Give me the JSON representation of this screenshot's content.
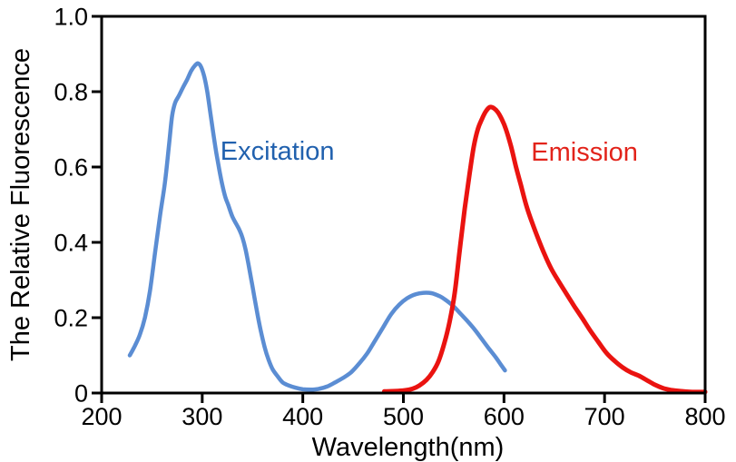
{
  "figure": {
    "background": "#ffffff",
    "axis_color": "#000000",
    "text_color": "#000000"
  },
  "chart_data": {
    "type": "line",
    "title": "",
    "xlabel": "Wavelength(nm)",
    "ylabel": "The Relative Fluorescence",
    "xlim": [
      200,
      800
    ],
    "ylim": [
      0,
      1.0
    ],
    "x_ticks": [
      200,
      300,
      400,
      500,
      600,
      700,
      800
    ],
    "x_tick_labels": [
      "200",
      "300",
      "400",
      "500",
      "600",
      "700",
      "800"
    ],
    "y_ticks": [
      0,
      0.2,
      0.4,
      0.6,
      0.8,
      1.0
    ],
    "y_tick_labels": [
      "0",
      "0.2",
      "0.4",
      "0.6",
      "0.8",
      "1.0"
    ],
    "grid": false,
    "frame": true,
    "legend_position": "inline-annotations",
    "series": [
      {
        "name": "Excitation",
        "label": "Excitation",
        "color": "#5b8dd3",
        "label_color": "#2161ae",
        "stroke_width": 4.5,
        "label_x": 318,
        "label_y": 0.619,
        "points": [
          [
            228,
            0.1
          ],
          [
            233,
            0.125
          ],
          [
            238,
            0.155
          ],
          [
            243,
            0.2
          ],
          [
            248,
            0.27
          ],
          [
            253,
            0.37
          ],
          [
            258,
            0.47
          ],
          [
            263,
            0.56
          ],
          [
            267,
            0.66
          ],
          [
            270,
            0.735
          ],
          [
            273,
            0.77
          ],
          [
            277,
            0.79
          ],
          [
            281,
            0.812
          ],
          [
            285,
            0.832
          ],
          [
            289,
            0.855
          ],
          [
            293,
            0.87
          ],
          [
            296,
            0.875
          ],
          [
            299,
            0.865
          ],
          [
            302,
            0.84
          ],
          [
            305,
            0.8
          ],
          [
            308,
            0.745
          ],
          [
            311,
            0.69
          ],
          [
            314,
            0.638
          ],
          [
            317,
            0.592
          ],
          [
            320,
            0.552
          ],
          [
            323,
            0.52
          ],
          [
            326,
            0.498
          ],
          [
            330,
            0.468
          ],
          [
            334,
            0.448
          ],
          [
            337,
            0.433
          ],
          [
            340,
            0.412
          ],
          [
            343,
            0.382
          ],
          [
            346,
            0.342
          ],
          [
            349,
            0.298
          ],
          [
            352,
            0.252
          ],
          [
            355,
            0.208
          ],
          [
            358,
            0.168
          ],
          [
            362,
            0.122
          ],
          [
            366,
            0.088
          ],
          [
            370,
            0.063
          ],
          [
            375,
            0.044
          ],
          [
            380,
            0.028
          ],
          [
            386,
            0.02
          ],
          [
            393,
            0.014
          ],
          [
            400,
            0.01
          ],
          [
            408,
            0.009
          ],
          [
            416,
            0.011
          ],
          [
            424,
            0.017
          ],
          [
            432,
            0.028
          ],
          [
            440,
            0.04
          ],
          [
            448,
            0.055
          ],
          [
            456,
            0.078
          ],
          [
            464,
            0.105
          ],
          [
            472,
            0.14
          ],
          [
            480,
            0.175
          ],
          [
            488,
            0.21
          ],
          [
            496,
            0.235
          ],
          [
            504,
            0.252
          ],
          [
            512,
            0.262
          ],
          [
            520,
            0.266
          ],
          [
            528,
            0.265
          ],
          [
            536,
            0.257
          ],
          [
            543,
            0.245
          ],
          [
            550,
            0.23
          ],
          [
            557,
            0.21
          ],
          [
            564,
            0.19
          ],
          [
            571,
            0.168
          ],
          [
            578,
            0.143
          ],
          [
            585,
            0.118
          ],
          [
            592,
            0.094
          ],
          [
            597,
            0.075
          ],
          [
            601,
            0.06
          ]
        ]
      },
      {
        "name": "Emission",
        "label": "Emission",
        "color": "#ea1310",
        "label_color": "#e2231a",
        "stroke_width": 5,
        "label_x": 627,
        "label_y": 0.617,
        "points": [
          [
            481,
            0.004
          ],
          [
            492,
            0.005
          ],
          [
            501,
            0.007
          ],
          [
            509,
            0.011
          ],
          [
            516,
            0.02
          ],
          [
            523,
            0.035
          ],
          [
            529,
            0.055
          ],
          [
            535,
            0.085
          ],
          [
            541,
            0.135
          ],
          [
            546,
            0.19
          ],
          [
            551,
            0.265
          ],
          [
            556,
            0.38
          ],
          [
            561,
            0.49
          ],
          [
            566,
            0.585
          ],
          [
            570,
            0.655
          ],
          [
            574,
            0.7
          ],
          [
            578,
            0.727
          ],
          [
            582,
            0.748
          ],
          [
            586,
            0.759
          ],
          [
            590,
            0.756
          ],
          [
            594,
            0.745
          ],
          [
            598,
            0.726
          ],
          [
            602,
            0.7
          ],
          [
            607,
            0.655
          ],
          [
            612,
            0.6
          ],
          [
            617,
            0.55
          ],
          [
            622,
            0.5
          ],
          [
            628,
            0.452
          ],
          [
            634,
            0.41
          ],
          [
            640,
            0.37
          ],
          [
            647,
            0.33
          ],
          [
            654,
            0.298
          ],
          [
            662,
            0.264
          ],
          [
            670,
            0.23
          ],
          [
            678,
            0.198
          ],
          [
            686,
            0.165
          ],
          [
            694,
            0.135
          ],
          [
            702,
            0.106
          ],
          [
            710,
            0.085
          ],
          [
            718,
            0.068
          ],
          [
            726,
            0.055
          ],
          [
            734,
            0.046
          ],
          [
            742,
            0.034
          ],
          [
            750,
            0.022
          ],
          [
            758,
            0.013
          ],
          [
            766,
            0.008
          ],
          [
            775,
            0.005
          ],
          [
            785,
            0.003
          ],
          [
            800,
            0.003
          ]
        ]
      }
    ]
  }
}
